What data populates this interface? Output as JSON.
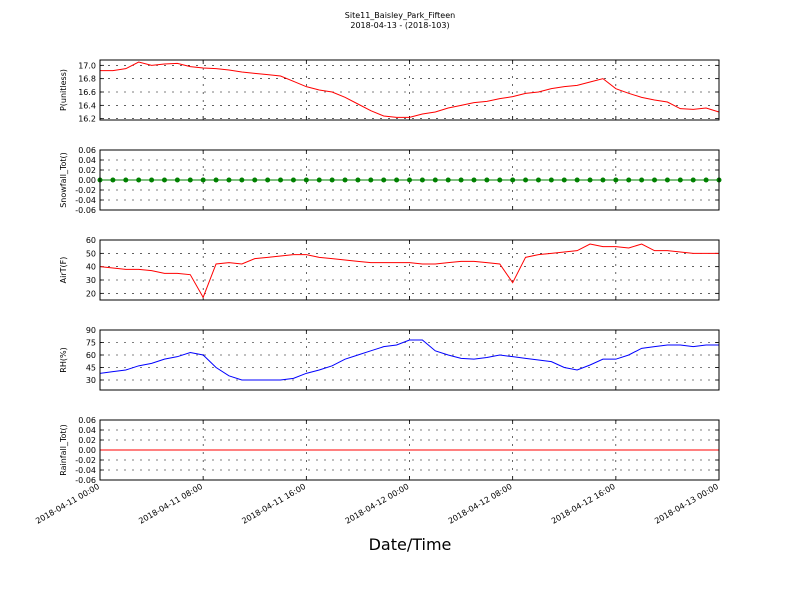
{
  "chart_data": [
    {
      "type": "line",
      "title": "Site11_Baisley_Park_Fifteen",
      "subtitle": "2018-04-13 - (2018-103)",
      "ylabel": "P(unitless)",
      "x": [
        "2018-04-11 00:00",
        "2018-04-11 01:00",
        "2018-04-11 02:00",
        "2018-04-11 03:00",
        "2018-04-11 04:00",
        "2018-04-11 05:00",
        "2018-04-11 06:00",
        "2018-04-11 07:00",
        "2018-04-11 08:00",
        "2018-04-11 09:00",
        "2018-04-11 10:00",
        "2018-04-11 11:00",
        "2018-04-11 12:00",
        "2018-04-11 13:00",
        "2018-04-11 14:00",
        "2018-04-11 15:00",
        "2018-04-11 16:00",
        "2018-04-11 17:00",
        "2018-04-11 18:00",
        "2018-04-11 19:00",
        "2018-04-11 20:00",
        "2018-04-11 21:00",
        "2018-04-11 22:00",
        "2018-04-11 23:00",
        "2018-04-12 00:00",
        "2018-04-12 01:00",
        "2018-04-12 02:00",
        "2018-04-12 03:00",
        "2018-04-12 04:00",
        "2018-04-12 05:00",
        "2018-04-12 06:00",
        "2018-04-12 07:00",
        "2018-04-12 08:00",
        "2018-04-12 09:00",
        "2018-04-12 10:00",
        "2018-04-12 11:00",
        "2018-04-12 12:00",
        "2018-04-12 13:00",
        "2018-04-12 14:00",
        "2018-04-12 15:00",
        "2018-04-12 16:00",
        "2018-04-12 17:00",
        "2018-04-12 18:00",
        "2018-04-12 19:00",
        "2018-04-12 20:00",
        "2018-04-12 21:00",
        "2018-04-12 22:00",
        "2018-04-12 23:00",
        "2018-04-13 00:00"
      ],
      "series": [
        {
          "color": "#ff0000",
          "values": [
            16.92,
            16.92,
            16.95,
            17.05,
            17.0,
            17.02,
            17.03,
            16.98,
            16.96,
            16.95,
            16.93,
            16.9,
            16.88,
            16.86,
            16.84,
            16.76,
            16.68,
            16.63,
            16.6,
            16.52,
            16.42,
            16.32,
            16.24,
            16.22,
            16.22,
            16.27,
            16.3,
            16.36,
            16.4,
            16.44,
            16.46,
            16.5,
            16.53,
            16.58,
            16.6,
            16.65,
            16.68,
            16.7,
            16.75,
            16.8,
            16.65,
            16.58,
            16.52,
            16.48,
            16.45,
            16.35,
            16.34,
            16.36,
            16.3
          ]
        }
      ],
      "xlim": [
        "2018-04-11 00:00",
        "2018-04-13 00:00"
      ],
      "ylim": [
        16.18,
        17.08
      ],
      "yticks": [
        {
          "value": 17.0,
          "label": "17.0"
        },
        16.8,
        16.6,
        16.4,
        {
          "value": 16.2,
          "label": "16.2"
        }
      ],
      "grid": true
    },
    {
      "type": "line",
      "ylabel": "Snowfall_Tot()",
      "marker": "o",
      "x": [
        "2018-04-11 00:00",
        "2018-04-11 01:00",
        "2018-04-11 02:00",
        "2018-04-11 03:00",
        "2018-04-11 04:00",
        "2018-04-11 05:00",
        "2018-04-11 06:00",
        "2018-04-11 07:00",
        "2018-04-11 08:00",
        "2018-04-11 09:00",
        "2018-04-11 10:00",
        "2018-04-11 11:00",
        "2018-04-11 12:00",
        "2018-04-11 13:00",
        "2018-04-11 14:00",
        "2018-04-11 15:00",
        "2018-04-11 16:00",
        "2018-04-11 17:00",
        "2018-04-11 18:00",
        "2018-04-11 19:00",
        "2018-04-11 20:00",
        "2018-04-11 21:00",
        "2018-04-11 22:00",
        "2018-04-11 23:00",
        "2018-04-12 00:00",
        "2018-04-12 01:00",
        "2018-04-12 02:00",
        "2018-04-12 03:00",
        "2018-04-12 04:00",
        "2018-04-12 05:00",
        "2018-04-12 06:00",
        "2018-04-12 07:00",
        "2018-04-12 08:00",
        "2018-04-12 09:00",
        "2018-04-12 10:00",
        "2018-04-12 11:00",
        "2018-04-12 12:00",
        "2018-04-12 13:00",
        "2018-04-12 14:00",
        "2018-04-12 15:00",
        "2018-04-12 16:00",
        "2018-04-12 17:00",
        "2018-04-12 18:00",
        "2018-04-12 19:00",
        "2018-04-12 20:00",
        "2018-04-12 21:00",
        "2018-04-12 22:00",
        "2018-04-12 23:00",
        "2018-04-13 00:00"
      ],
      "series": [
        {
          "color": "#008000",
          "values": [
            0,
            0,
            0,
            0,
            0,
            0,
            0,
            0,
            0,
            0,
            0,
            0,
            0,
            0,
            0,
            0,
            0,
            0,
            0,
            0,
            0,
            0,
            0,
            0,
            0,
            0,
            0,
            0,
            0,
            0,
            0,
            0,
            0,
            0,
            0,
            0,
            0,
            0,
            0,
            0,
            0,
            0,
            0,
            0,
            0,
            0,
            0,
            0,
            0
          ]
        }
      ],
      "xlim": [
        "2018-04-11 00:00",
        "2018-04-13 00:00"
      ],
      "ylim": [
        -0.06,
        0.06
      ],
      "yticks": [
        0.06,
        0.04,
        0.02,
        {
          "value": 0,
          "label": "0.00"
        },
        -0.02,
        -0.04,
        -0.06
      ],
      "grid": true
    },
    {
      "type": "line",
      "ylabel": "AirT(F)",
      "x": [
        "2018-04-11 00:00",
        "2018-04-11 01:00",
        "2018-04-11 02:00",
        "2018-04-11 03:00",
        "2018-04-11 04:00",
        "2018-04-11 05:00",
        "2018-04-11 06:00",
        "2018-04-11 07:00",
        "2018-04-11 08:00",
        "2018-04-11 09:00",
        "2018-04-11 10:00",
        "2018-04-11 11:00",
        "2018-04-11 12:00",
        "2018-04-11 13:00",
        "2018-04-11 14:00",
        "2018-04-11 15:00",
        "2018-04-11 16:00",
        "2018-04-11 17:00",
        "2018-04-11 18:00",
        "2018-04-11 19:00",
        "2018-04-11 20:00",
        "2018-04-11 21:00",
        "2018-04-11 22:00",
        "2018-04-11 23:00",
        "2018-04-12 00:00",
        "2018-04-12 01:00",
        "2018-04-12 02:00",
        "2018-04-12 03:00",
        "2018-04-12 04:00",
        "2018-04-12 05:00",
        "2018-04-12 06:00",
        "2018-04-12 07:00",
        "2018-04-12 08:00",
        "2018-04-12 09:00",
        "2018-04-12 10:00",
        "2018-04-12 11:00",
        "2018-04-12 12:00",
        "2018-04-12 13:00",
        "2018-04-12 14:00",
        "2018-04-12 15:00",
        "2018-04-12 16:00",
        "2018-04-12 17:00",
        "2018-04-12 18:00",
        "2018-04-12 19:00",
        "2018-04-12 20:00",
        "2018-04-12 21:00",
        "2018-04-12 22:00",
        "2018-04-12 23:00",
        "2018-04-13 00:00"
      ],
      "series": [
        {
          "color": "#ff0000",
          "values": [
            40,
            39,
            38,
            38,
            37,
            35,
            35,
            34,
            17,
            42,
            43,
            42,
            46,
            47,
            48,
            49,
            49,
            47,
            46,
            45,
            44,
            43,
            43,
            43,
            43,
            42,
            42,
            43,
            44,
            44,
            43,
            42,
            28,
            47,
            49,
            50,
            51,
            52,
            57,
            55,
            55,
            54,
            57,
            52,
            52,
            51,
            50,
            50,
            50
          ]
        }
      ],
      "xlim": [
        "2018-04-11 00:00",
        "2018-04-13 00:00"
      ],
      "ylim": [
        15,
        60
      ],
      "yticks": [
        60,
        50,
        40,
        30,
        20
      ],
      "grid": true
    },
    {
      "type": "line",
      "ylabel": "RH(%)",
      "x": [
        "2018-04-11 00:00",
        "2018-04-11 01:00",
        "2018-04-11 02:00",
        "2018-04-11 03:00",
        "2018-04-11 04:00",
        "2018-04-11 05:00",
        "2018-04-11 06:00",
        "2018-04-11 07:00",
        "2018-04-11 08:00",
        "2018-04-11 09:00",
        "2018-04-11 10:00",
        "2018-04-11 11:00",
        "2018-04-11 12:00",
        "2018-04-11 13:00",
        "2018-04-11 14:00",
        "2018-04-11 15:00",
        "2018-04-11 16:00",
        "2018-04-11 17:00",
        "2018-04-11 18:00",
        "2018-04-11 19:00",
        "2018-04-11 20:00",
        "2018-04-11 21:00",
        "2018-04-11 22:00",
        "2018-04-11 23:00",
        "2018-04-12 00:00",
        "2018-04-12 01:00",
        "2018-04-12 02:00",
        "2018-04-12 03:00",
        "2018-04-12 04:00",
        "2018-04-12 05:00",
        "2018-04-12 06:00",
        "2018-04-12 07:00",
        "2018-04-12 08:00",
        "2018-04-12 09:00",
        "2018-04-12 10:00",
        "2018-04-12 11:00",
        "2018-04-12 12:00",
        "2018-04-12 13:00",
        "2018-04-12 14:00",
        "2018-04-12 15:00",
        "2018-04-12 16:00",
        "2018-04-12 17:00",
        "2018-04-12 18:00",
        "2018-04-12 19:00",
        "2018-04-12 20:00",
        "2018-04-12 21:00",
        "2018-04-12 22:00",
        "2018-04-12 23:00",
        "2018-04-13 00:00"
      ],
      "series": [
        {
          "color": "#0000ff",
          "values": [
            38,
            40,
            42,
            47,
            50,
            55,
            58,
            63,
            60,
            45,
            35,
            30,
            30,
            30,
            30,
            32,
            38,
            42,
            47,
            55,
            60,
            65,
            70,
            72,
            78,
            78,
            65,
            60,
            56,
            55,
            57,
            60,
            58,
            56,
            54,
            52,
            45,
            42,
            48,
            55,
            55,
            60,
            68,
            70,
            72,
            72,
            70,
            72,
            72
          ]
        }
      ],
      "xlim": [
        "2018-04-11 00:00",
        "2018-04-13 00:00"
      ],
      "ylim": [
        18,
        90
      ],
      "yticks": [
        90,
        75,
        60,
        45,
        30
      ],
      "grid": true
    },
    {
      "type": "line",
      "ylabel": "Rainfall_Tot()",
      "xlabel": "Date/Time",
      "x": [
        "2018-04-11 00:00",
        "2018-04-11 01:00",
        "2018-04-11 02:00",
        "2018-04-11 03:00",
        "2018-04-11 04:00",
        "2018-04-11 05:00",
        "2018-04-11 06:00",
        "2018-04-11 07:00",
        "2018-04-11 08:00",
        "2018-04-11 09:00",
        "2018-04-11 10:00",
        "2018-04-11 11:00",
        "2018-04-11 12:00",
        "2018-04-11 13:00",
        "2018-04-11 14:00",
        "2018-04-11 15:00",
        "2018-04-11 16:00",
        "2018-04-11 17:00",
        "2018-04-11 18:00",
        "2018-04-11 19:00",
        "2018-04-11 20:00",
        "2018-04-11 21:00",
        "2018-04-11 22:00",
        "2018-04-11 23:00",
        "2018-04-12 00:00",
        "2018-04-12 01:00",
        "2018-04-12 02:00",
        "2018-04-12 03:00",
        "2018-04-12 04:00",
        "2018-04-12 05:00",
        "2018-04-12 06:00",
        "2018-04-12 07:00",
        "2018-04-12 08:00",
        "2018-04-12 09:00",
        "2018-04-12 10:00",
        "2018-04-12 11:00",
        "2018-04-12 12:00",
        "2018-04-12 13:00",
        "2018-04-12 14:00",
        "2018-04-12 15:00",
        "2018-04-12 16:00",
        "2018-04-12 17:00",
        "2018-04-12 18:00",
        "2018-04-12 19:00",
        "2018-04-12 20:00",
        "2018-04-12 21:00",
        "2018-04-12 22:00",
        "2018-04-12 23:00",
        "2018-04-13 00:00"
      ],
      "series": [
        {
          "color": "#ff0000",
          "values": [
            0,
            0,
            0,
            0,
            0,
            0,
            0,
            0,
            0,
            0,
            0,
            0,
            0,
            0,
            0,
            0,
            0,
            0,
            0,
            0,
            0,
            0,
            0,
            0,
            0,
            0,
            0,
            0,
            0,
            0,
            0,
            0,
            0,
            0,
            0,
            0,
            0,
            0,
            0,
            0,
            0,
            0,
            0,
            0,
            0,
            0,
            0,
            0,
            0
          ]
        }
      ],
      "xlim": [
        "2018-04-11 00:00",
        "2018-04-13 00:00"
      ],
      "xticks": [
        "2018-04-11 00:00",
        "2018-04-11 08:00",
        "2018-04-11 16:00",
        "2018-04-12 00:00",
        "2018-04-12 08:00",
        "2018-04-12 16:00",
        "2018-04-13 00:00"
      ],
      "ylim": [
        -0.06,
        0.06
      ],
      "yticks": [
        0.06,
        0.04,
        0.02,
        {
          "value": 0,
          "label": "0.00"
        },
        -0.02,
        -0.04,
        -0.06
      ],
      "grid": true
    }
  ]
}
